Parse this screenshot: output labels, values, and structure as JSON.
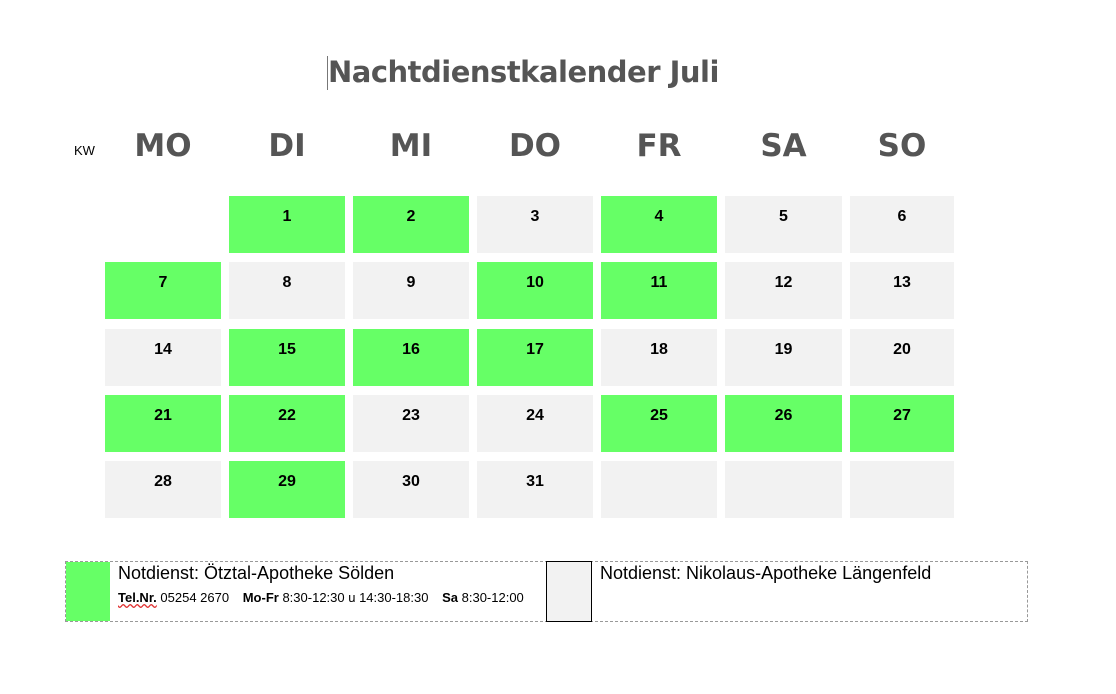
{
  "title": "Nachtdienstkalender Juli",
  "kw_label": "KW",
  "days": [
    "MO",
    "DI",
    "MI",
    "DO",
    "FR",
    "SA",
    "SO"
  ],
  "weeks": [
    [
      null,
      {
        "d": "1",
        "g": true
      },
      {
        "d": "2",
        "g": true
      },
      {
        "d": "3",
        "g": false
      },
      {
        "d": "4",
        "g": true
      },
      {
        "d": "5",
        "g": false
      },
      {
        "d": "6",
        "g": false
      }
    ],
    [
      {
        "d": "7",
        "g": true
      },
      {
        "d": "8",
        "g": false
      },
      {
        "d": "9",
        "g": false
      },
      {
        "d": "10",
        "g": true
      },
      {
        "d": "11",
        "g": true
      },
      {
        "d": "12",
        "g": false
      },
      {
        "d": "13",
        "g": false
      }
    ],
    [
      {
        "d": "14",
        "g": false
      },
      {
        "d": "15",
        "g": true
      },
      {
        "d": "16",
        "g": true
      },
      {
        "d": "17",
        "g": true
      },
      {
        "d": "18",
        "g": false
      },
      {
        "d": "19",
        "g": false
      },
      {
        "d": "20",
        "g": false
      }
    ],
    [
      {
        "d": "21",
        "g": true
      },
      {
        "d": "22",
        "g": true
      },
      {
        "d": "23",
        "g": false
      },
      {
        "d": "24",
        "g": false
      },
      {
        "d": "25",
        "g": true
      },
      {
        "d": "26",
        "g": true
      },
      {
        "d": "27",
        "g": true
      }
    ],
    [
      {
        "d": "28",
        "g": false
      },
      {
        "d": "29",
        "g": true
      },
      {
        "d": "30",
        "g": false
      },
      {
        "d": "31",
        "g": false
      },
      {
        "d": "",
        "g": false
      },
      {
        "d": "",
        "g": false
      },
      {
        "d": "",
        "g": false
      }
    ]
  ],
  "legend": {
    "green_title": "Notdienst: Ötztal-Apotheke Sölden",
    "tel_label": "Tel.Nr.",
    "tel_value": "05254 2670",
    "mofr_label": "Mo-Fr",
    "mofr_value": "8:30-12:30 u 14:30-18:30",
    "sa_label": "Sa",
    "sa_value": "8:30-12:00",
    "grey_title": "Notdienst: Nikolaus-Apotheke Längenfeld"
  },
  "colors": {
    "duty_green": "#66ff66",
    "other_grey": "#f2f2f2",
    "heading_grey": "#555555"
  }
}
